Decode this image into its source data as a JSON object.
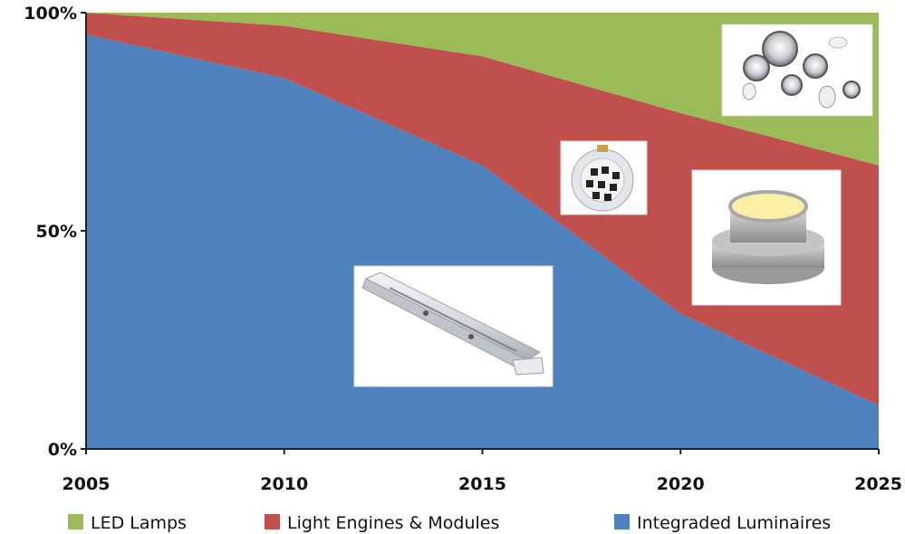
{
  "chart_data": {
    "type": "area",
    "stacked": true,
    "x": [
      2005,
      2010,
      2015,
      2020,
      2025
    ],
    "series": [
      {
        "name": "Integraded Luminaires",
        "color": "#4f81bd",
        "values": [
          95,
          85,
          65,
          31,
          10
        ]
      },
      {
        "name": "Light Engines & Modules",
        "color": "#c0504d",
        "values": [
          5,
          12,
          25,
          46,
          55
        ]
      },
      {
        "name": "LED Lamps",
        "color": "#9bbb59",
        "values": [
          0,
          3,
          10,
          23,
          35
        ]
      }
    ],
    "ylim": [
      0,
      100
    ],
    "yticks": [
      0,
      50,
      100
    ],
    "ytick_labels": [
      "0%",
      "50%",
      "100%"
    ],
    "xticks": [
      "2005",
      "2010",
      "2015",
      "2020",
      "2025"
    ],
    "legend": {
      "position": "bottom",
      "order": [
        "LED Lamps",
        "Light Engines & Modules",
        "Integraded Luminaires"
      ]
    },
    "grid": false,
    "annotations": [
      {
        "type": "product-photo",
        "name": "led-lamps-photo"
      },
      {
        "type": "product-photo",
        "name": "led-module-board-photo"
      },
      {
        "type": "product-photo",
        "name": "light-engine-photo"
      },
      {
        "type": "product-photo",
        "name": "linear-luminaire-photo"
      }
    ]
  }
}
